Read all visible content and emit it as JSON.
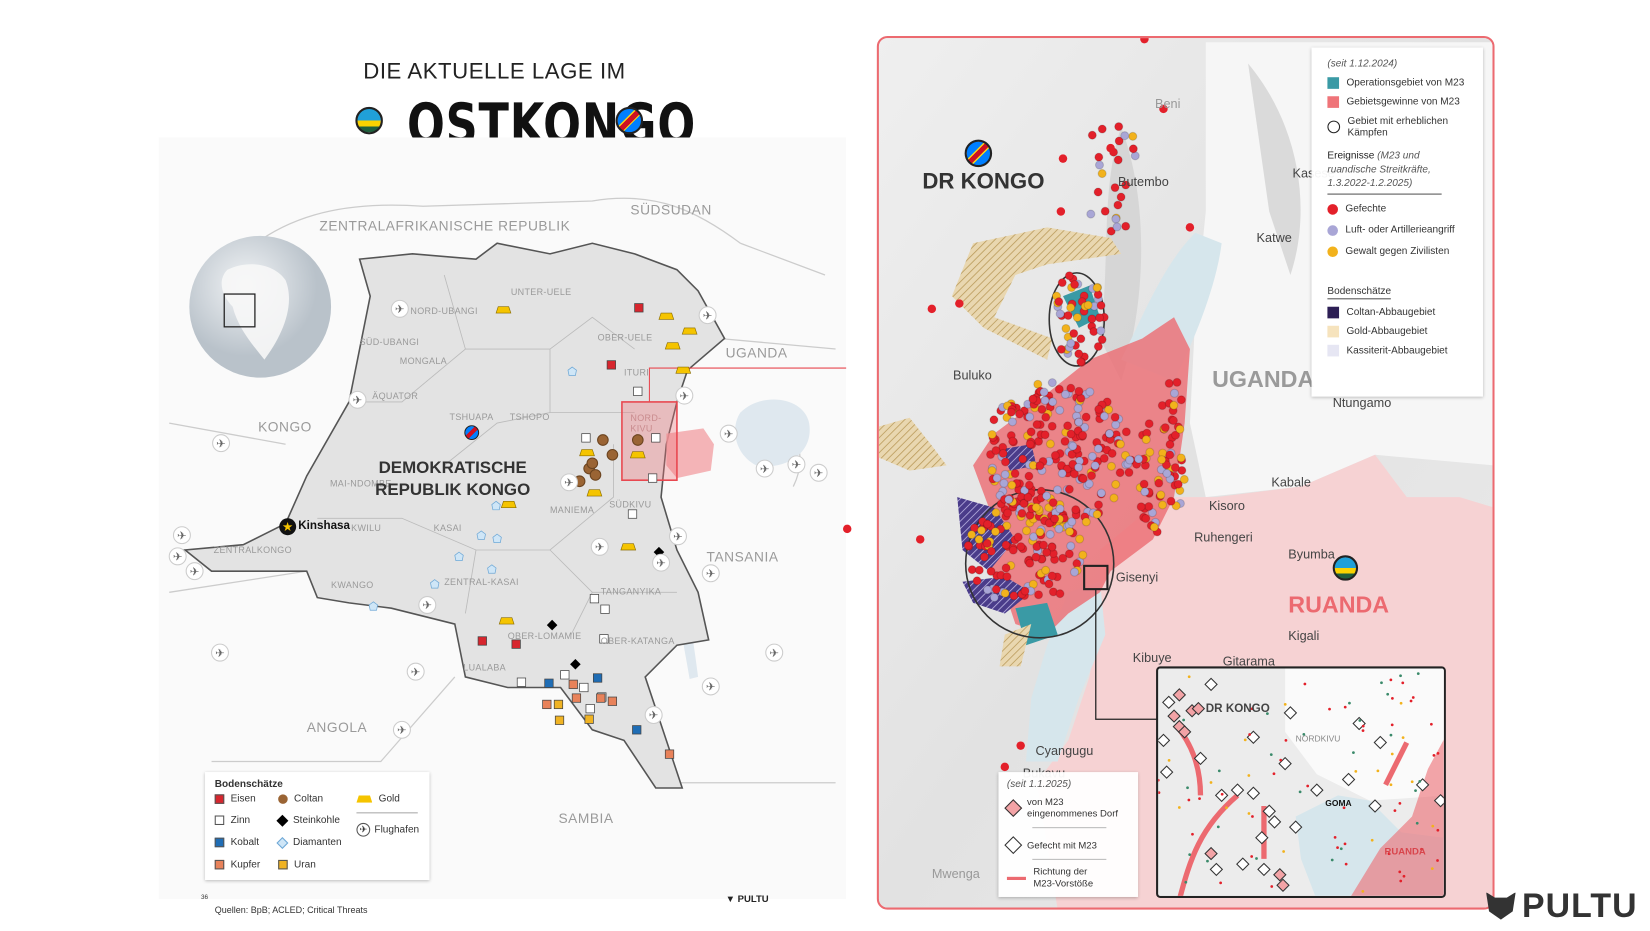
{
  "title": {
    "line1": "DIE AKTUELLE LAGE IM",
    "line2": "OSTKONGO"
  },
  "left_map": {
    "countries": [
      "ZENTRALAFRIKANISCHE REPUBLIK",
      "SÜDSUDAN",
      "UGANDA",
      "KONGO",
      "TANSANIA",
      "ANGOLA",
      "SAMBIA"
    ],
    "country_main": "DEMOKRATISCHE REPUBLIK KONGO",
    "provinces": [
      "UNTER-UELE",
      "NORD-UBANGI",
      "SÜD-UBANGI",
      "OBER-UELE",
      "MONGALA",
      "ITURI",
      "ÄQUATOR",
      "TSHUAPA",
      "TSHOPO",
      "NORD-KIVU",
      "MAI-NDOMBE",
      "MANIEMA",
      "SÜDKIVU",
      "KWILU",
      "KASAI",
      "ZENTRALKONGO",
      "KWANGO",
      "ZENTRAL-KASAI",
      "TANGANYIKA",
      "OBER-LOMAMIE",
      "OBER-KATANGA",
      "LUALABA"
    ],
    "capital": "Kinshasa"
  },
  "left_legend": {
    "title": "Bodenschätze",
    "items": [
      {
        "label": "Eisen",
        "color": "#d7262e",
        "shape": "square"
      },
      {
        "label": "Zinn",
        "color": "#ffffff",
        "shape": "square"
      },
      {
        "label": "Kobalt",
        "color": "#1f6db5",
        "shape": "square"
      },
      {
        "label": "Kupfer",
        "color": "#e8825a",
        "shape": "square"
      },
      {
        "label": "Coltan",
        "color": "#9a6434",
        "shape": "hexagon"
      },
      {
        "label": "Steinkohle",
        "color": "#000000",
        "shape": "diamond"
      },
      {
        "label": "Diamanten",
        "color": "#cfe6f7",
        "shape": "diamond-outline"
      },
      {
        "label": "Uran",
        "color": "#f0b323",
        "shape": "square"
      },
      {
        "label": "Gold",
        "color": "#f5c400",
        "shape": "trapezoid"
      }
    ],
    "airport": "Flughafen",
    "airport_icon": "airplane-icon"
  },
  "footer": {
    "page": "36",
    "sources": "Quellen: BpB; ACLED; Critical Threats",
    "brand_small": "PULTU",
    "brand": "PULTU"
  },
  "right_map": {
    "country": "DR KONGO",
    "uganda": "UGANDA",
    "ruanda": "RUANDA",
    "towns": [
      "Beni",
      "Butembo",
      "Kasese",
      "Katwe",
      "Buluko",
      "Ntungamo",
      "Kabale",
      "Kisoro",
      "Ruhengeri",
      "Byumba",
      "Gisenyi",
      "Kigali",
      "Kibuye",
      "Gitarama",
      "Cyangugu",
      "Bukavu",
      "Mwenga"
    ],
    "legend": {
      "since": "(seit 1.12.2024)",
      "area_items": [
        {
          "label": "Operationsgebiet von M23",
          "color": "#3a9aa5"
        },
        {
          "label": "Gebietsgewinne von M23",
          "color": "#ef7479"
        },
        {
          "label": "Gebiet mit erheblichen Kämpfen",
          "color": "#222222"
        }
      ],
      "events_title": "Ereignisse",
      "events_note": "(M23 und ruandische Streitkräfte, 1.3.2022-1.2.2025)",
      "events": [
        {
          "label": "Gefechte",
          "color": "#e3202a"
        },
        {
          "label": "Luft- oder Artillerieangriff",
          "color": "#a9a6d6"
        },
        {
          "label": "Gewalt gegen Zivilisten",
          "color": "#f2b21c"
        }
      ],
      "resources_title": "Bodenschätze",
      "resources": [
        {
          "label": "Coltan-Abbaugebiet",
          "color": "#2d1f55"
        },
        {
          "label": "Gold-Abbaugebiet",
          "color": "#f6e3bd"
        },
        {
          "label": "Kassiterit-Abbaugebiet",
          "color": "#e6e6f3"
        }
      ]
    },
    "legend2": {
      "since": "(seit 1.1.2025)",
      "items": [
        "von M23 eingenommenes Dorf",
        "Gefecht mit M23",
        "Richtung der M23-Vorstöße"
      ]
    },
    "inset": {
      "country": "DR KONGO",
      "province": "NORDKIVU",
      "city": "GOMA",
      "ruanda": "RUANDA"
    }
  }
}
